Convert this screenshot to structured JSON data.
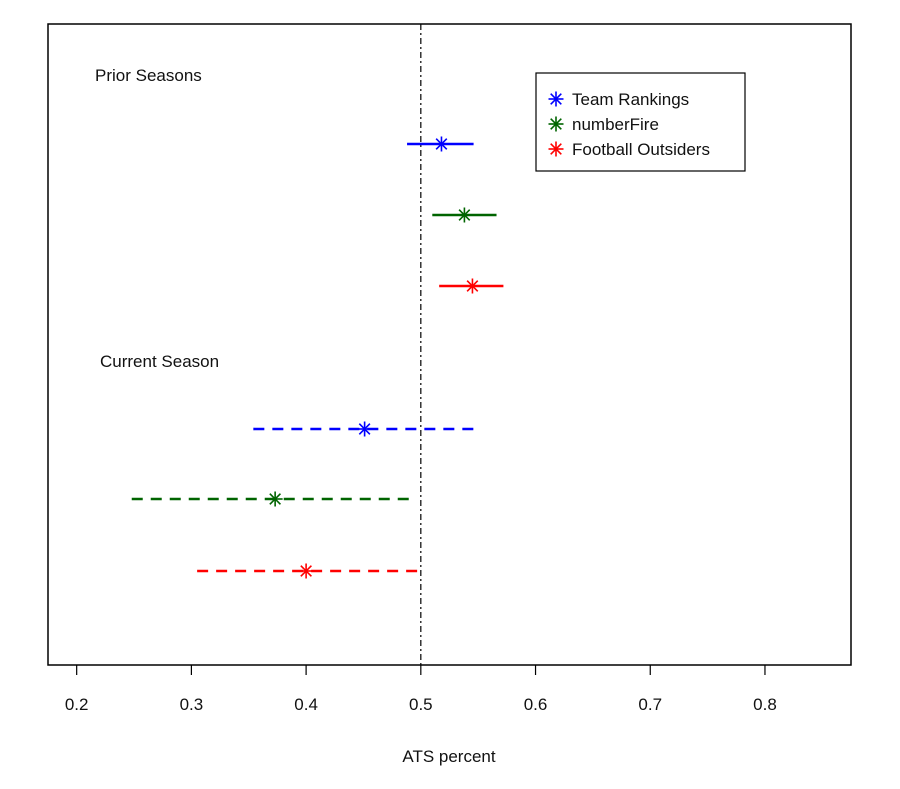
{
  "chart_data": {
    "type": "forest",
    "xlabel": "ATS percent",
    "xlim": [
      0.175,
      0.875
    ],
    "xticks": [
      0.2,
      0.3,
      0.4,
      0.5,
      0.6,
      0.7,
      0.8
    ],
    "xtick_labels": [
      "0.2",
      "0.3",
      "0.4",
      "0.5",
      "0.6",
      "0.7",
      "0.8"
    ],
    "reference_line": 0.5,
    "legend_position": "top-right",
    "groups": [
      {
        "label": "Prior Seasons",
        "line_style": "solid",
        "entries": [
          {
            "series": "Team Rankings",
            "estimate": 0.518,
            "low": 0.488,
            "high": 0.546
          },
          {
            "series": "numberFire",
            "estimate": 0.538,
            "low": 0.51,
            "high": 0.566
          },
          {
            "series": "Football Outsiders",
            "estimate": 0.545,
            "low": 0.516,
            "high": 0.572
          }
        ]
      },
      {
        "label": "Current Season",
        "line_style": "dashed",
        "entries": [
          {
            "series": "Team Rankings",
            "estimate": 0.451,
            "low": 0.354,
            "high": 0.548
          },
          {
            "series": "numberFire",
            "estimate": 0.373,
            "low": 0.248,
            "high": 0.496
          },
          {
            "series": "Football Outsiders",
            "estimate": 0.4,
            "low": 0.305,
            "high": 0.498
          }
        ]
      }
    ],
    "series": [
      {
        "name": "Team Rankings",
        "color": "#0000ff"
      },
      {
        "name": "numberFire",
        "color": "#006400"
      },
      {
        "name": "Football Outsiders",
        "color": "#ff0000"
      }
    ]
  }
}
